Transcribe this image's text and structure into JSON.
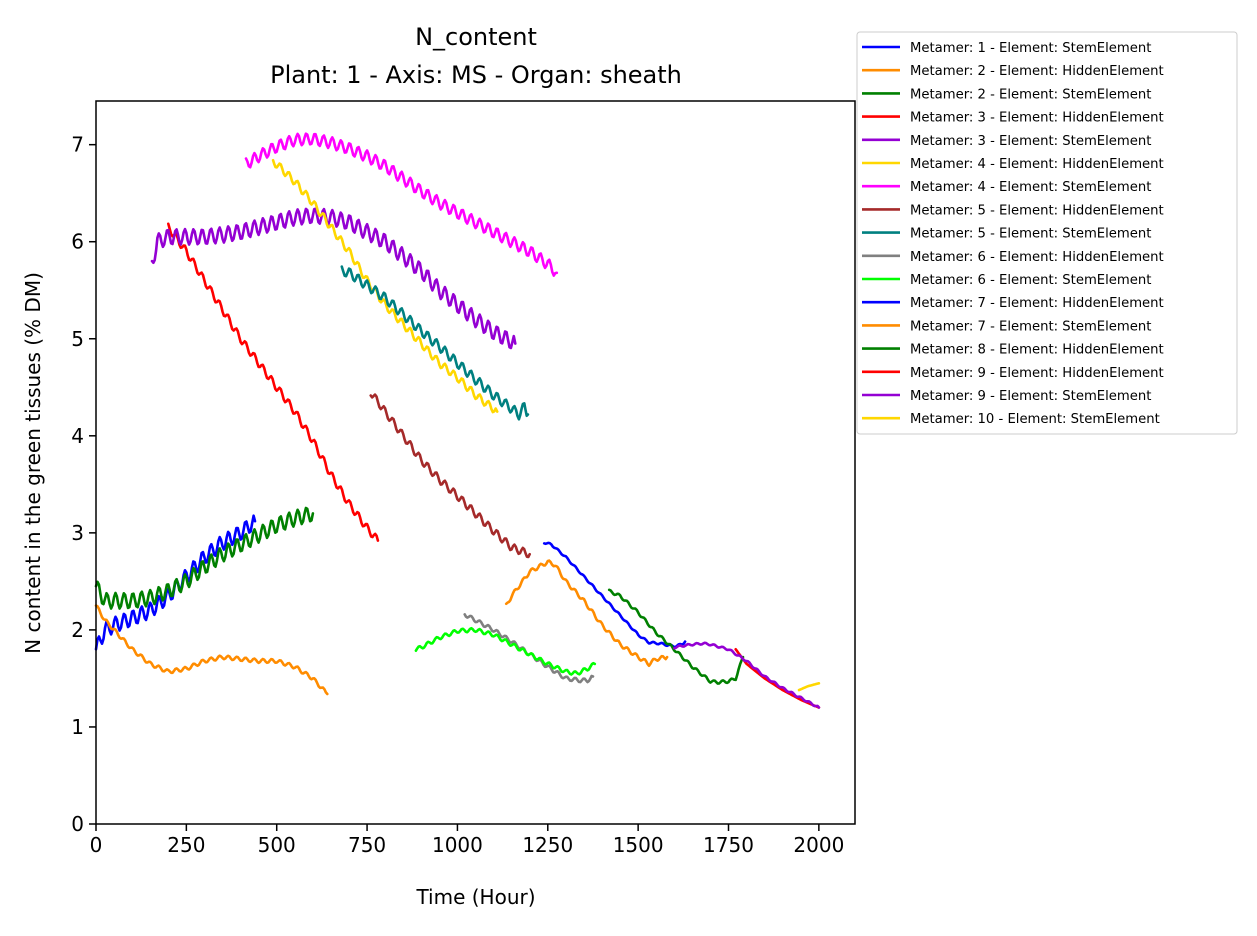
{
  "chart_data": {
    "type": "line",
    "title": "N_content",
    "subtitle": "Plant: 1 - Axis: MS - Organ: sheath",
    "xlabel": "Time (Hour)",
    "ylabel": "N content in the green tissues (% DM)",
    "xlim": [
      0,
      2100
    ],
    "ylim": [
      0,
      7.45
    ],
    "xticks": [
      0,
      250,
      500,
      750,
      1000,
      1250,
      1500,
      1750,
      2000
    ],
    "yticks": [
      0,
      1,
      2,
      3,
      4,
      5,
      6,
      7
    ],
    "grid": false,
    "legend_position": "outside-top-right",
    "series": [
      {
        "name": "Metamer: 1 - Element: StemElement",
        "color": "#0000ff",
        "x": [
          0,
          25,
          50,
          100,
          150,
          200,
          250,
          300,
          350,
          400,
          440
        ],
        "y": [
          1.8,
          2.0,
          2.05,
          2.12,
          2.2,
          2.35,
          2.55,
          2.75,
          2.9,
          3.0,
          3.12
        ],
        "wiggle": 0.08
      },
      {
        "name": "Metamer: 2 - Element: HiddenElement",
        "color": "#ff8c00",
        "x": [
          0,
          25,
          50,
          100,
          150,
          200,
          250,
          300,
          350,
          400,
          450,
          500,
          550,
          600,
          640
        ],
        "y": [
          2.25,
          2.1,
          2.0,
          1.8,
          1.65,
          1.57,
          1.6,
          1.68,
          1.72,
          1.7,
          1.68,
          1.68,
          1.62,
          1.5,
          1.34
        ],
        "wiggle": 0.02
      },
      {
        "name": "Metamer: 2 - Element: StemElement",
        "color": "#008000",
        "x": [
          0,
          25,
          50,
          100,
          150,
          200,
          250,
          300,
          350,
          400,
          450,
          500,
          550,
          600
        ],
        "y": [
          2.45,
          2.3,
          2.3,
          2.3,
          2.33,
          2.4,
          2.5,
          2.65,
          2.78,
          2.88,
          2.98,
          3.08,
          3.15,
          3.2
        ],
        "wiggle": 0.08
      },
      {
        "name": "Metamer: 3 - Element: HiddenElement",
        "color": "#ff0000",
        "x": [
          200,
          250,
          300,
          350,
          400,
          450,
          500,
          550,
          600,
          650,
          700,
          750,
          780
        ],
        "y": [
          6.15,
          5.9,
          5.6,
          5.3,
          5.0,
          4.75,
          4.5,
          4.25,
          3.95,
          3.6,
          3.3,
          3.05,
          2.92
        ],
        "wiggle": 0.04
      },
      {
        "name": "Metamer: 3 - Element: StemElement",
        "color": "#9400d3",
        "x": [
          155,
          170,
          200,
          250,
          300,
          350,
          400,
          450,
          500,
          550,
          600,
          650,
          700,
          750,
          800,
          850,
          900,
          950,
          1000,
          1050,
          1100,
          1160
        ],
        "y": [
          5.78,
          6.0,
          6.05,
          6.05,
          6.05,
          6.07,
          6.1,
          6.15,
          6.2,
          6.25,
          6.27,
          6.25,
          6.2,
          6.1,
          6.0,
          5.85,
          5.7,
          5.5,
          5.35,
          5.2,
          5.07,
          4.95
        ],
        "wiggle": 0.08
      },
      {
        "name": "Metamer: 4 - Element: HiddenElement",
        "color": "#ffd700",
        "x": [
          490,
          500,
          550,
          600,
          650,
          700,
          750,
          800,
          850,
          900,
          950,
          1000,
          1050,
          1110
        ],
        "y": [
          6.82,
          6.8,
          6.62,
          6.4,
          6.15,
          5.9,
          5.6,
          5.35,
          5.15,
          4.95,
          4.75,
          4.6,
          4.42,
          4.25
        ],
        "wiggle": 0.04
      },
      {
        "name": "Metamer: 4 - Element: StemElement",
        "color": "#ff00ff",
        "x": [
          415,
          450,
          500,
          550,
          600,
          650,
          700,
          750,
          800,
          850,
          900,
          950,
          1000,
          1050,
          1100,
          1150,
          1200,
          1250,
          1275
        ],
        "y": [
          6.8,
          6.88,
          6.98,
          7.05,
          7.06,
          7.02,
          6.96,
          6.88,
          6.78,
          6.65,
          6.52,
          6.4,
          6.3,
          6.2,
          6.1,
          6.0,
          5.9,
          5.77,
          5.68
        ],
        "wiggle": 0.06
      },
      {
        "name": "Metamer: 5 - Element: HiddenElement",
        "color": "#a52a2a",
        "x": [
          760,
          800,
          850,
          900,
          950,
          1000,
          1050,
          1100,
          1150,
          1200
        ],
        "y": [
          4.45,
          4.25,
          4.0,
          3.75,
          3.55,
          3.38,
          3.2,
          3.02,
          2.85,
          2.78
        ],
        "wiggle": 0.04
      },
      {
        "name": "Metamer: 5 - Element: StemElement",
        "color": "#008080",
        "x": [
          680,
          700,
          750,
          800,
          850,
          900,
          950,
          1000,
          1050,
          1100,
          1150,
          1170,
          1185,
          1195
        ],
        "y": [
          5.7,
          5.68,
          5.55,
          5.42,
          5.25,
          5.08,
          4.92,
          4.75,
          4.58,
          4.42,
          4.28,
          4.22,
          4.3,
          4.22
        ],
        "wiggle": 0.05
      },
      {
        "name": "Metamer: 6 - Element: HiddenElement",
        "color": "#808080",
        "x": [
          1020,
          1050,
          1100,
          1150,
          1200,
          1250,
          1300,
          1340,
          1360,
          1375
        ],
        "y": [
          2.16,
          2.1,
          2.0,
          1.88,
          1.75,
          1.62,
          1.5,
          1.48,
          1.48,
          1.52
        ],
        "wiggle": 0.02
      },
      {
        "name": "Metamer: 6 - Element: StemElement",
        "color": "#00ff00",
        "x": [
          885,
          900,
          950,
          1000,
          1050,
          1100,
          1150,
          1200,
          1250,
          1300,
          1330,
          1360,
          1380
        ],
        "y": [
          1.8,
          1.82,
          1.92,
          1.99,
          2.0,
          1.95,
          1.85,
          1.75,
          1.65,
          1.57,
          1.55,
          1.6,
          1.65
        ],
        "wiggle": 0.02
      },
      {
        "name": "Metamer: 7 - Element: HiddenElement",
        "color": "#0000ff",
        "x": [
          1240,
          1260,
          1300,
          1350,
          1400,
          1450,
          1500,
          1530,
          1560,
          1600,
          1620,
          1630
        ],
        "y": [
          2.9,
          2.88,
          2.75,
          2.55,
          2.35,
          2.15,
          1.95,
          1.87,
          1.86,
          1.83,
          1.85,
          1.88
        ],
        "wiggle": 0.01
      },
      {
        "name": "Metamer: 7 - Element: StemElement",
        "color": "#ff8c00",
        "x": [
          1135,
          1150,
          1200,
          1250,
          1270,
          1300,
          1350,
          1400,
          1450,
          1500,
          1530,
          1550,
          1580
        ],
        "y": [
          2.25,
          2.35,
          2.6,
          2.7,
          2.67,
          2.5,
          2.3,
          2.05,
          1.85,
          1.72,
          1.65,
          1.7,
          1.72
        ],
        "wiggle": 0.02
      },
      {
        "name": "Metamer: 8 - Element: HiddenElement",
        "color": "#008000",
        "x": [
          1420,
          1450,
          1500,
          1550,
          1600,
          1650,
          1700,
          1720,
          1750,
          1770,
          1790
        ],
        "y": [
          2.4,
          2.35,
          2.18,
          1.97,
          1.8,
          1.62,
          1.47,
          1.46,
          1.47,
          1.5,
          1.72
        ],
        "wiggle": 0.015
      },
      {
        "name": "Metamer: 9 - Element: HiddenElement",
        "color": "#ff0000",
        "x": [
          1770,
          1800,
          1850,
          1900,
          1950,
          2000
        ],
        "y": [
          1.8,
          1.65,
          1.5,
          1.38,
          1.28,
          1.2
        ],
        "wiggle": 0.0
      },
      {
        "name": "Metamer: 9 - Element: StemElement",
        "color": "#9400d3",
        "x": [
          1600,
          1630,
          1650,
          1680,
          1700,
          1750,
          1800,
          1850,
          1900,
          1950,
          2000
        ],
        "y": [
          1.82,
          1.84,
          1.85,
          1.86,
          1.85,
          1.8,
          1.68,
          1.52,
          1.4,
          1.3,
          1.2
        ],
        "wiggle": 0.01
      },
      {
        "name": "Metamer: 10 - Element: StemElement",
        "color": "#ffd700",
        "x": [
          1945,
          1970,
          2000
        ],
        "y": [
          1.38,
          1.42,
          1.45
        ],
        "wiggle": 0.0
      }
    ]
  }
}
